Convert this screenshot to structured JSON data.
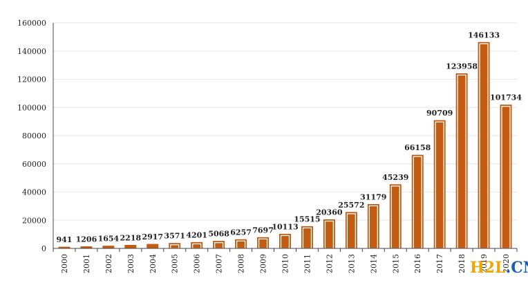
{
  "chart_data": {
    "type": "bar",
    "title": "",
    "xlabel": "",
    "ylabel": "",
    "categories": [
      "2000",
      "2001",
      "2002",
      "2003",
      "2004",
      "2005",
      "2006",
      "2007",
      "2008",
      "2009",
      "2010",
      "2011",
      "2012",
      "2013",
      "2014",
      "2015",
      "2016",
      "2017",
      "2018",
      "2019",
      "2020"
    ],
    "values": [
      941,
      1206,
      1654,
      2218,
      2917,
      3571,
      4201,
      5068,
      6257,
      7697,
      10113,
      15515,
      20360,
      25572,
      31179,
      45239,
      66158,
      90709,
      123958,
      146133,
      101734
    ],
    "ylim": [
      0,
      160000
    ],
    "yticks": [
      0,
      20000,
      40000,
      60000,
      80000,
      100000,
      120000,
      140000,
      160000
    ],
    "grid": true,
    "data_labels": true,
    "colors": {
      "bar_fill": "#c55a11",
      "bar_border": "#c55a11",
      "bar_gap": "#ffffff",
      "grid": "#e6e6e6",
      "axis": "#444444"
    }
  },
  "watermark": {
    "part1": "H2L",
    "part2": ".CN",
    "color1": "#f0a500",
    "color2": "#1a5fb4"
  }
}
